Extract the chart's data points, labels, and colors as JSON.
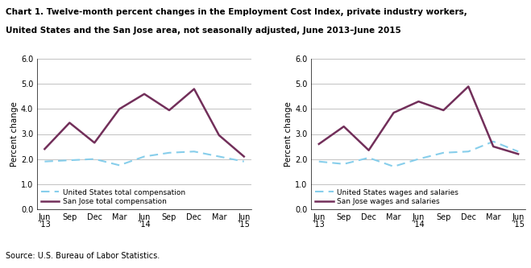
{
  "title_line1": "Chart 1. Twelve-month percent changes in the Employment Cost Index, private industry workers,",
  "title_line2": "United States and the San Jose area, not seasonally adjusted, June 2013–June 2015",
  "source": "Source: U.S. Bureau of Labor Statistics.",
  "ylabel": "Percent change",
  "x_labels": [
    "Jun\n'13",
    "Sep",
    "Dec",
    "Mar",
    "Jun\n'14",
    "Sep",
    "Dec",
    "Mar",
    "Jun\n'15"
  ],
  "x_label_short": [
    "Jun\n'13",
    "Sep",
    "Dec",
    "Mar",
    "Jun\n'14",
    "Sep",
    "Dec",
    "Mar",
    "Jun\n'15"
  ],
  "ylim": [
    0.0,
    6.0
  ],
  "yticks": [
    0.0,
    1.0,
    2.0,
    3.0,
    4.0,
    5.0,
    6.0
  ],
  "chart1": {
    "us_total_comp": [
      1.9,
      1.95,
      2.0,
      1.75,
      2.1,
      2.25,
      2.3,
      2.1,
      1.9
    ],
    "sj_total_comp": [
      2.4,
      3.45,
      2.65,
      4.0,
      4.6,
      3.95,
      4.8,
      2.95,
      2.1
    ],
    "legend1": "United States total compensation",
    "legend2": "San Jose total compensation"
  },
  "chart2": {
    "us_wages": [
      1.9,
      1.8,
      2.05,
      1.7,
      2.0,
      2.25,
      2.3,
      2.7,
      2.3
    ],
    "sj_wages": [
      2.6,
      3.3,
      2.35,
      3.85,
      4.3,
      3.95,
      4.9,
      2.5,
      2.2
    ],
    "legend1": "United States wages and salaries",
    "legend2": "San Jose wages and salaries"
  },
  "us_color": "#87CEEB",
  "sj_color_comp": "#722F5A",
  "sj_color_wages": "#722F5A",
  "bg_color": "#FFFFFF",
  "grid_color": "#AAAAAA"
}
